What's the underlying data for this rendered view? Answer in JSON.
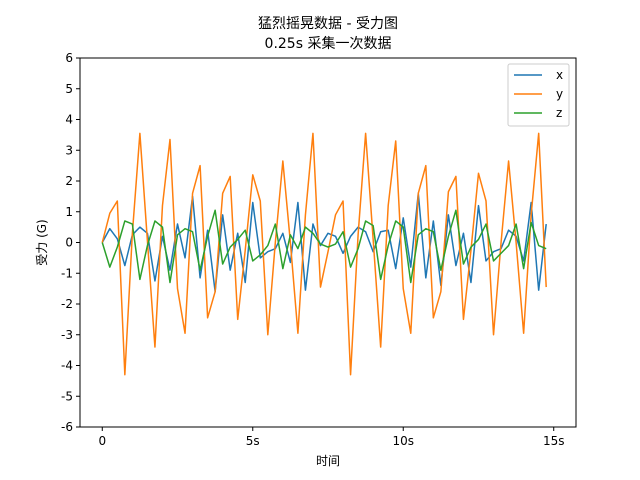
{
  "chart_data": {
    "type": "line",
    "title": "猛烈摇晃数据 - 受力图",
    "subtitle": "0.25s 采集一次数据",
    "xlabel": "时间",
    "ylabel": "受力 (G)",
    "xlim": [
      -0.74,
      15.74
    ],
    "ylim": [
      -6,
      6
    ],
    "xticks": [
      0,
      5,
      10,
      15
    ],
    "xticklabels": [
      "0",
      "5s",
      "10s",
      "15s"
    ],
    "yticks": [
      -6,
      -5,
      -4,
      -3,
      -2,
      -1,
      0,
      1,
      2,
      3,
      4,
      5,
      6
    ],
    "grid": false,
    "legend_position": "top-right",
    "x": [
      0,
      0.25,
      0.5,
      0.75,
      1,
      1.25,
      1.5,
      1.75,
      2,
      2.25,
      2.5,
      2.75,
      3,
      3.25,
      3.5,
      3.75,
      4,
      4.25,
      4.5,
      4.75,
      5,
      5.25,
      5.5,
      5.75,
      6,
      6.25,
      6.5,
      6.75,
      7,
      7.25,
      7.5,
      7.75,
      8,
      8.25,
      8.5,
      8.75,
      9,
      9.25,
      9.5,
      9.75,
      10,
      10.25,
      10.5,
      10.75,
      11,
      11.25,
      11.5,
      11.75,
      12,
      12.25,
      12.5,
      12.75,
      13,
      13.25,
      13.5,
      13.75,
      14,
      14.25,
      14.5,
      14.75
    ],
    "series": [
      {
        "name": "x",
        "color": "#1f77b4",
        "values": [
          0.0,
          0.45,
          0.12,
          -0.75,
          0.25,
          0.5,
          0.3,
          -1.25,
          0.2,
          -0.9,
          0.6,
          -0.5,
          1.5,
          -1.15,
          0.4,
          -1.6,
          0.9,
          -0.9,
          0.3,
          -1.3,
          1.3,
          -0.5,
          -0.3,
          -0.2,
          0.3,
          -0.65,
          1.3,
          -1.55,
          0.6,
          -0.1,
          0.3,
          0.2,
          -0.35,
          0.2,
          0.5,
          0.35,
          -0.3,
          0.35,
          0.4,
          -0.85,
          0.8,
          -0.8,
          1.6,
          -1.15,
          0.7,
          -1.4,
          0.9,
          -0.75,
          0.3,
          -1.3,
          1.2,
          -0.6,
          -0.3,
          -0.2,
          0.4,
          0.2,
          -0.6,
          1.3,
          -1.55,
          0.6
        ]
      },
      {
        "name": "y",
        "color": "#ff7f0e",
        "values": [
          0.0,
          0.95,
          1.35,
          -4.3,
          0.3,
          3.55,
          0.05,
          -3.4,
          1.2,
          3.35,
          -1.5,
          -2.95,
          1.6,
          2.5,
          -2.45,
          -1.6,
          1.6,
          2.15,
          -2.5,
          -0.25,
          2.2,
          1.35,
          -3.0,
          0.0,
          2.65,
          0.0,
          -2.95,
          0.9,
          3.55,
          -1.45,
          -0.3,
          0.9,
          1.35,
          -4.3,
          0.25,
          3.55,
          0.1,
          -3.4,
          1.2,
          3.3,
          -1.5,
          -2.95,
          1.6,
          2.5,
          -2.45,
          -1.6,
          1.65,
          2.15,
          -2.5,
          -0.25,
          2.25,
          1.35,
          -3.0,
          0.0,
          2.65,
          0.0,
          -2.95,
          0.9,
          3.55,
          -1.45
        ]
      },
      {
        "name": "z",
        "color": "#2ca02c",
        "values": [
          0.0,
          -0.8,
          -0.15,
          0.7,
          0.6,
          -1.2,
          -0.1,
          0.7,
          0.5,
          -1.3,
          0.25,
          0.45,
          0.35,
          -0.9,
          0.2,
          1.05,
          -0.7,
          -0.15,
          0.1,
          0.4,
          -0.6,
          -0.4,
          -0.1,
          0.6,
          -0.85,
          0.25,
          -0.2,
          0.5,
          0.3,
          -0.05,
          -0.15,
          -0.05,
          0.35,
          -0.8,
          -0.2,
          0.7,
          0.55,
          -1.2,
          -0.1,
          0.7,
          0.5,
          -1.3,
          0.25,
          0.45,
          0.35,
          -0.9,
          0.2,
          1.05,
          -0.7,
          -0.15,
          0.1,
          0.6,
          -0.6,
          -0.35,
          -0.1,
          0.6,
          -0.85,
          0.65,
          -0.1,
          -0.2
        ]
      }
    ]
  }
}
